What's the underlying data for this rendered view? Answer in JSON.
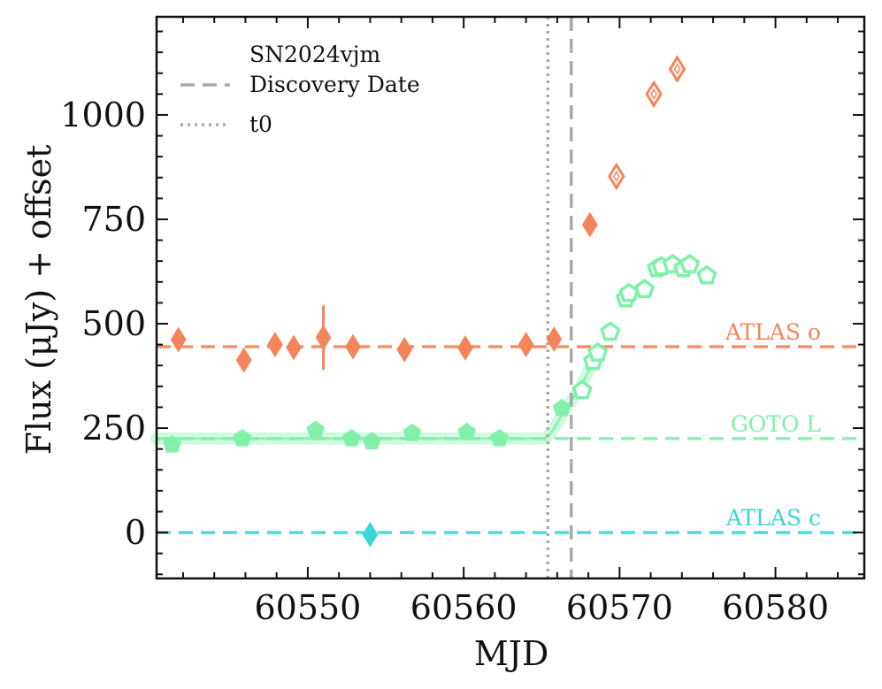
{
  "chart_data": {
    "type": "scatter",
    "xlabel": "MJD",
    "ylabel": "Flux (μJy) + offset",
    "xlim": [
      60540.3,
      60585.7
    ],
    "ylim": [
      -110,
      1235
    ],
    "xticks": [
      60550,
      60560,
      60570,
      60580
    ],
    "yticks": [
      0,
      250,
      500,
      750,
      1000
    ],
    "xtick_labels": [
      "60550",
      "60560",
      "60570",
      "60580"
    ],
    "ytick_labels": [
      "0",
      "250",
      "500",
      "750",
      "1000"
    ],
    "legend": {
      "title": "SN2024vjm",
      "location": "top-left",
      "entries": [
        {
          "label": "Discovery Date",
          "style": "dashed",
          "color": "#a9a9a9"
        },
        {
          "label": "t0",
          "style": "dotted",
          "color": "#a9a9a9"
        }
      ]
    },
    "vlines": [
      {
        "name": "t0",
        "x": 60565.4,
        "style": "dotted",
        "color": "#a9a9a9"
      },
      {
        "name": "discovery",
        "x": 60566.9,
        "style": "dashed",
        "color": "#a9a9a9"
      }
    ],
    "series": [
      {
        "name": "ATLAS o",
        "color": "#f4845a",
        "marker": "diamond",
        "offset_level": 445,
        "points": [
          {
            "x": 60541.7,
            "y": 462,
            "err": 15,
            "filled": true
          },
          {
            "x": 60545.9,
            "y": 413,
            "err": 15,
            "filled": true
          },
          {
            "x": 60547.9,
            "y": 450,
            "err": 15,
            "filled": true
          },
          {
            "x": 60549.1,
            "y": 443,
            "err": 15,
            "filled": true
          },
          {
            "x": 60551.0,
            "y": 467,
            "err": 77,
            "filled": true
          },
          {
            "x": 60552.9,
            "y": 445,
            "err": 15,
            "filled": true
          },
          {
            "x": 60556.2,
            "y": 438,
            "err": 15,
            "filled": true
          },
          {
            "x": 60560.1,
            "y": 442,
            "err": 15,
            "filled": true
          },
          {
            "x": 60564.0,
            "y": 450,
            "err": 15,
            "filled": true
          },
          {
            "x": 60565.8,
            "y": 463,
            "err": 15,
            "filled": true
          },
          {
            "x": 60568.1,
            "y": 737,
            "err": 15,
            "filled": true
          },
          {
            "x": 60569.8,
            "y": 853,
            "err": 15,
            "filled": false
          },
          {
            "x": 60572.2,
            "y": 1050,
            "err": 15,
            "filled": false
          },
          {
            "x": 60573.7,
            "y": 1110,
            "err": 15,
            "filled": false
          }
        ]
      },
      {
        "name": "GOTO L",
        "color": "#7ff0a8",
        "marker": "pentagon",
        "offset_level": 225,
        "points": [
          {
            "x": 60541.3,
            "y": 210,
            "filled": true
          },
          {
            "x": 60545.8,
            "y": 225,
            "filled": true
          },
          {
            "x": 60550.5,
            "y": 245,
            "filled": true
          },
          {
            "x": 60552.8,
            "y": 225,
            "filled": true
          },
          {
            "x": 60554.1,
            "y": 218,
            "filled": true
          },
          {
            "x": 60556.7,
            "y": 238,
            "filled": true
          },
          {
            "x": 60560.2,
            "y": 240,
            "filled": true
          },
          {
            "x": 60562.3,
            "y": 225,
            "filled": true
          },
          {
            "x": 60566.3,
            "y": 297,
            "filled": true
          },
          {
            "x": 60567.6,
            "y": 340,
            "filled": false
          },
          {
            "x": 60568.3,
            "y": 410,
            "filled": false
          },
          {
            "x": 60568.6,
            "y": 430,
            "filled": false
          },
          {
            "x": 60569.4,
            "y": 480,
            "filled": false
          },
          {
            "x": 60570.4,
            "y": 560,
            "filled": false
          },
          {
            "x": 60570.6,
            "y": 573,
            "filled": false
          },
          {
            "x": 60571.6,
            "y": 582,
            "filled": false
          },
          {
            "x": 60572.4,
            "y": 632,
            "filled": false
          },
          {
            "x": 60572.7,
            "y": 637,
            "filled": false
          },
          {
            "x": 60573.4,
            "y": 642,
            "filled": false
          },
          {
            "x": 60574.1,
            "y": 632,
            "filled": false
          },
          {
            "x": 60574.5,
            "y": 642,
            "filled": false
          },
          {
            "x": 60575.6,
            "y": 615,
            "filled": false
          }
        ],
        "model": {
          "x": [
            60540.3,
            60565.2,
            60565.6,
            60566.0,
            60566.5,
            60567.0,
            60567.5,
            60568.0,
            60568.5
          ],
          "y": [
            225,
            225,
            238,
            262,
            293,
            320,
            350,
            385,
            420
          ]
        }
      },
      {
        "name": "ATLAS c",
        "color": "#3cd6d6",
        "marker": "diamond",
        "offset_level": 0,
        "points": [
          {
            "x": 60554.0,
            "y": -5,
            "err": 10,
            "filled": true
          }
        ]
      }
    ]
  }
}
